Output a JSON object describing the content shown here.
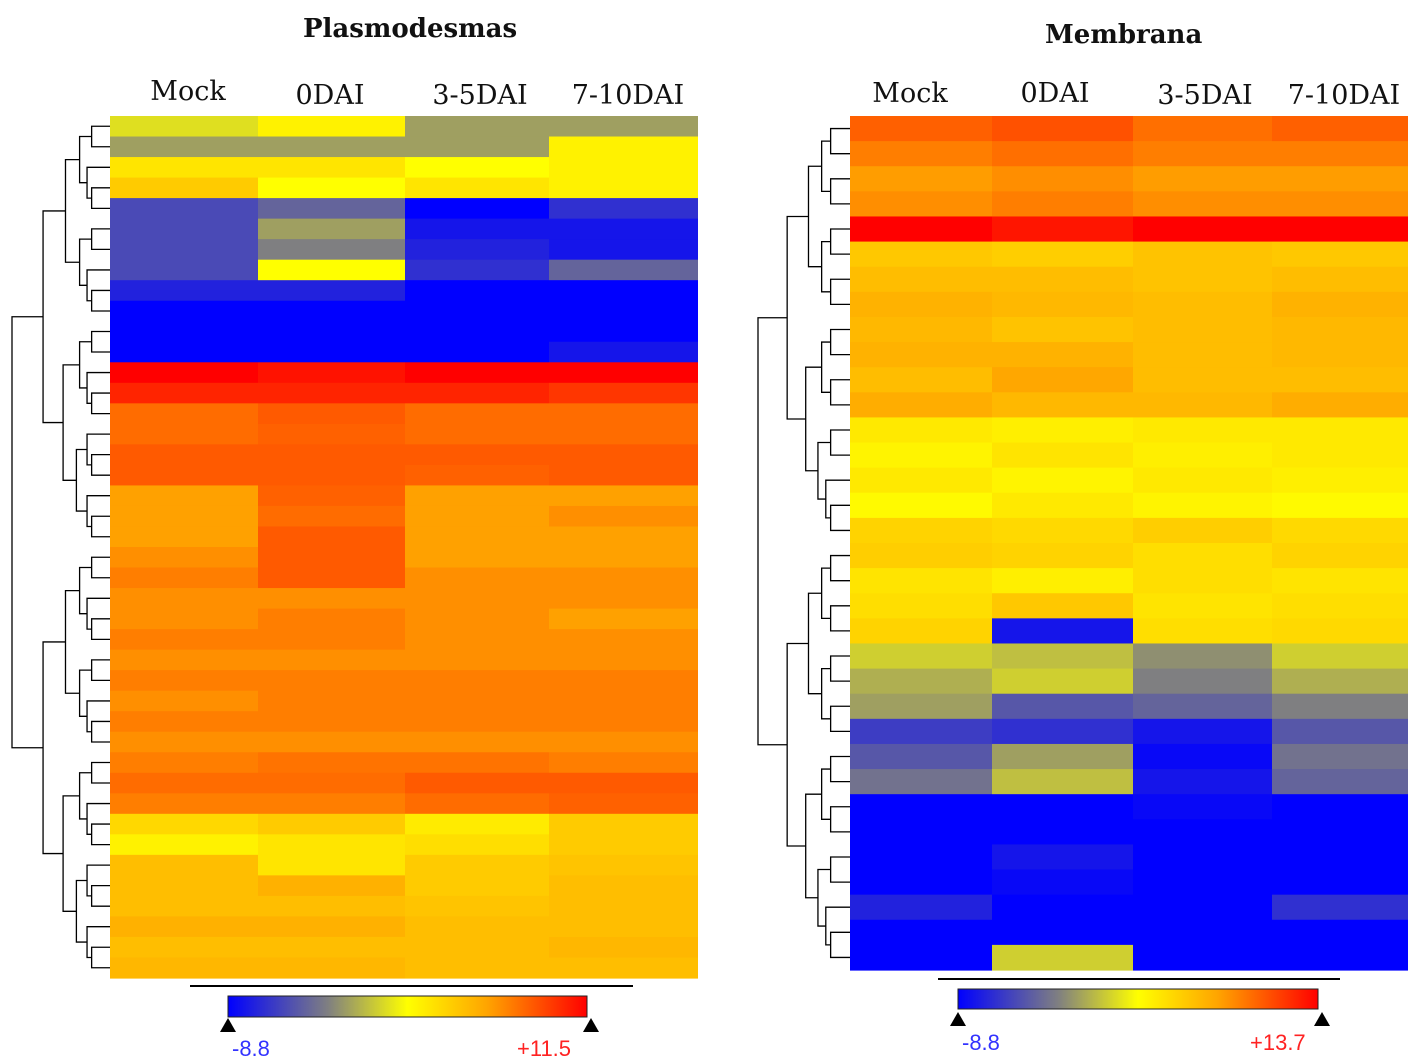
{
  "colors": {
    "low": "#0000ff",
    "mid": "#ffff00",
    "high": "#ff0000",
    "neutral": "#808080",
    "tree": "#000000",
    "min_label": "#3333ff",
    "max_label": "#ff2222"
  },
  "chart_data": [
    {
      "type": "heatmap",
      "title": "Plasmodesmas",
      "columns": [
        "Mock",
        "0DAI",
        "3-5DAI",
        "7-10DAI"
      ],
      "scale": {
        "min": -8.8,
        "max": 11.5,
        "min_label": "-8.8",
        "max_label": "+11.5"
      },
      "rows": [
        [
          -1,
          1,
          -3,
          -3
        ],
        [
          -3,
          -3,
          -3,
          1
        ],
        [
          2,
          2,
          0,
          1
        ],
        [
          4,
          0,
          2,
          1
        ],
        [
          -6,
          -5,
          -8.8,
          -7
        ],
        [
          -6,
          -3,
          -8,
          -8
        ],
        [
          -6,
          -4,
          -7.5,
          -8
        ],
        [
          -6,
          0,
          -7,
          -5
        ],
        [
          -7.5,
          -7.5,
          -8.8,
          -8.8
        ],
        [
          -8.8,
          -8.8,
          -8.8,
          -8.8
        ],
        [
          -8.8,
          -8.8,
          -8.8,
          -8.8
        ],
        [
          -8.8,
          -8.8,
          -8.8,
          -8
        ],
        [
          11.5,
          11,
          11.5,
          11.5
        ],
        [
          10.5,
          10.5,
          10.5,
          10
        ],
        [
          8.5,
          9,
          8.5,
          8.5
        ],
        [
          8.5,
          8.8,
          8.5,
          8.5
        ],
        [
          9,
          9,
          9,
          9
        ],
        [
          9,
          9,
          8.8,
          9
        ],
        [
          7,
          8.8,
          7,
          7
        ],
        [
          7,
          8.5,
          7,
          7.5
        ],
        [
          7,
          9,
          7,
          7
        ],
        [
          7.5,
          9,
          7,
          7
        ],
        [
          8,
          9,
          7.5,
          7.5
        ],
        [
          7.5,
          7.5,
          7.5,
          7.5
        ],
        [
          7.5,
          8,
          7.5,
          7
        ],
        [
          8,
          8,
          7.5,
          7.5
        ],
        [
          7.5,
          7.5,
          7.5,
          7.5
        ],
        [
          8,
          8,
          8,
          8
        ],
        [
          7.5,
          8,
          8,
          8
        ],
        [
          8,
          8,
          8,
          8
        ],
        [
          7.5,
          7.5,
          7.5,
          7.5
        ],
        [
          8,
          8.3,
          8.3,
          8
        ],
        [
          8.5,
          8.5,
          9,
          9
        ],
        [
          8,
          8,
          8.5,
          8.8
        ],
        [
          3,
          4,
          1.5,
          4
        ],
        [
          1,
          2,
          2.5,
          4
        ],
        [
          5,
          2,
          4,
          4.5
        ],
        [
          5,
          6,
          4,
          5
        ],
        [
          5,
          5,
          4.5,
          5
        ],
        [
          6,
          6,
          5,
          5
        ],
        [
          5,
          5,
          5,
          5.5
        ],
        [
          5.5,
          5.5,
          5,
          5
        ]
      ]
    },
    {
      "type": "heatmap",
      "title": "Membrana",
      "columns": [
        "Mock",
        "0DAI",
        "3-5DAI",
        "7-10DAI"
      ],
      "scale": {
        "min": -8.8,
        "max": 13.7,
        "min_label": "-8.8",
        "max_label": "+13.7"
      },
      "rows": [
        [
          10.5,
          11,
          10,
          10.5
        ],
        [
          9.5,
          10,
          9.5,
          9.5
        ],
        [
          8.5,
          9,
          8.5,
          8.5
        ],
        [
          9,
          9.5,
          9,
          9
        ],
        [
          13.7,
          13,
          13.7,
          13.7
        ],
        [
          5,
          4.5,
          5.5,
          5
        ],
        [
          6,
          6,
          5.5,
          6
        ],
        [
          7,
          6.5,
          6,
          7
        ],
        [
          6.5,
          5.5,
          6,
          6.5
        ],
        [
          7,
          7,
          6,
          6.5
        ],
        [
          6,
          8,
          6,
          6
        ],
        [
          7.5,
          6.5,
          6.5,
          7.5
        ],
        [
          2,
          1.5,
          2,
          2
        ],
        [
          1,
          2.5,
          1.5,
          2
        ],
        [
          2,
          1,
          2,
          1.5
        ],
        [
          0.5,
          2,
          1,
          0.5
        ],
        [
          4,
          3.5,
          4.5,
          3.5
        ],
        [
          4.5,
          4,
          3,
          4
        ],
        [
          2.5,
          1.5,
          3,
          2.5
        ],
        [
          3,
          5,
          2.5,
          3
        ],
        [
          4,
          -8,
          3,
          3.5
        ],
        [
          -1.5,
          -2,
          -3.5,
          -1.5
        ],
        [
          -2.5,
          -1.5,
          -4,
          -2.5
        ],
        [
          -3,
          -5.5,
          -5,
          -4
        ],
        [
          -6.5,
          -7,
          -8,
          -5.5
        ],
        [
          -5.5,
          -3,
          -8.5,
          -4.5
        ],
        [
          -4.5,
          -2,
          -8,
          -5
        ],
        [
          -8.8,
          -8.8,
          -8.5,
          -8.8
        ],
        [
          -8.8,
          -8.8,
          -8.8,
          -8.8
        ],
        [
          -8.8,
          -8,
          -8.8,
          -8.8
        ],
        [
          -8.8,
          -8.5,
          -8.8,
          -8.8
        ],
        [
          -7.5,
          -8.8,
          -8.8,
          -7
        ],
        [
          -8.8,
          -8.8,
          -8.8,
          -8.8
        ],
        [
          -8.8,
          -1.5,
          -8.8,
          -8.8
        ]
      ]
    }
  ]
}
